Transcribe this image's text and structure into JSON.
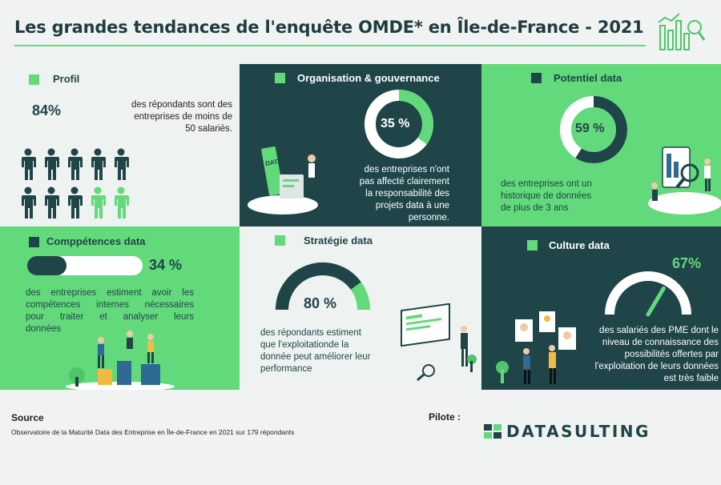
{
  "title": "Les grandes tendances de l'enquête OMDE* en Île-de-France - 2021",
  "colors": {
    "dark": "#1f4548",
    "green": "#62d97a",
    "light": "#eef2f1"
  },
  "panels": {
    "profil": {
      "title": "Profil",
      "value": "84%",
      "text_lines": [
        "des répondants sont des",
        "entreprises de moins de",
        "50 salariés."
      ],
      "people_total": 10,
      "people_highlighted_dark": 8
    },
    "organisation": {
      "title": "Organisation & gouvernance",
      "value": "35 %",
      "fraction": 0.35,
      "text_lines": [
        "des entreprises n'ont",
        "pas affecté clairement",
        "la responsabilité des",
        "projets data à une",
        "personne."
      ],
      "illustration_label": "DATA"
    },
    "potentiel": {
      "title": "Potentiel data",
      "value": "59 %",
      "fraction": 0.59,
      "text_lines": [
        "des entreprises ont un",
        "historique de données",
        "de plus de 3 ans"
      ]
    },
    "competences": {
      "title": "Comppétences data",
      "value": "34 %",
      "fraction": 0.34,
      "text_lines": [
        "des entreprises estiment avoir les",
        "compétences internes nécessaires",
        "pour traiter et analyser leurs",
        "données"
      ]
    },
    "strategie": {
      "title": "Stratégie data",
      "value": "80 %",
      "fraction": 0.8,
      "text_lines": [
        "des répondants estiment",
        "que l'exploitationde la",
        "donnée peut améliorer leur",
        "performance"
      ]
    },
    "culture": {
      "title": "Culture data",
      "value": "67%",
      "fraction": 0.67,
      "text_lines": [
        "des salariés des PME dont le",
        "niveau de connaissance des",
        "possibilités offertes par",
        "l'exploitation de leurs données",
        "est très faible"
      ]
    }
  },
  "footer": {
    "source_label": "Source",
    "source_text": "Observatoire de la Maturité Data des Entreprise en Île-de-France en 2021 sur 179 répondants",
    "pilote_label": "Pilote :",
    "brand": "DATASULTING"
  }
}
